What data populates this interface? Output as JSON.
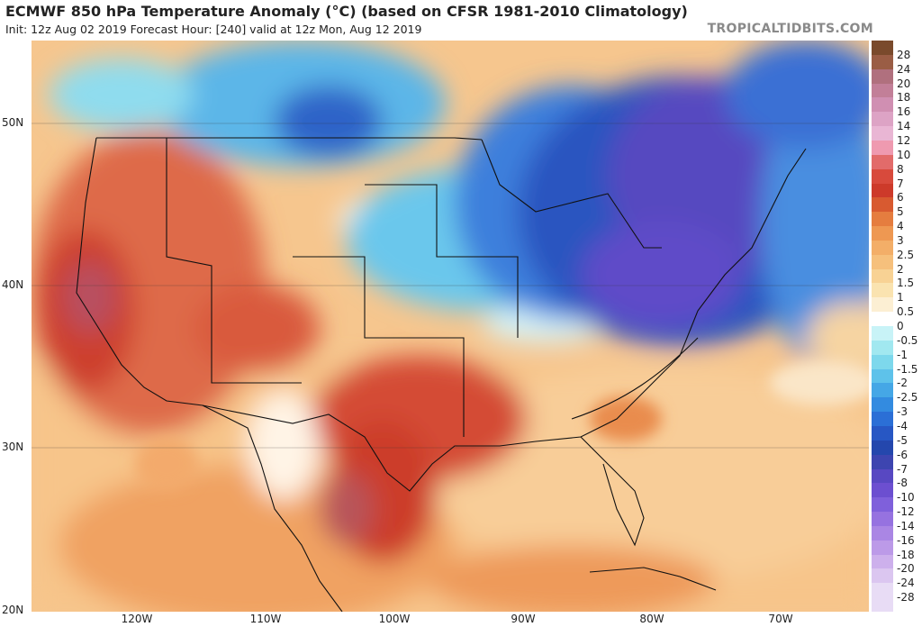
{
  "header": {
    "title": "ECMWF 850 hPa Temperature Anomaly (°C) (based on CFSR 1981-2010 Climatology)",
    "subtitle": "Init: 12z Aug 02 2019   Forecast Hour: [240]   valid at 12z Mon, Aug 12 2019",
    "brand": "TROPICALTIDBITS.COM"
  },
  "map": {
    "lat_labels": [
      "50N",
      "40N",
      "30N",
      "20N"
    ],
    "lon_labels": [
      "120W",
      "110W",
      "100W",
      "90W",
      "80W",
      "70W"
    ],
    "lon_range": [
      -128,
      -63
    ],
    "lat_range": [
      20,
      55
    ]
  },
  "colorbar": {
    "levels": [
      "28",
      "24",
      "20",
      "18",
      "16",
      "14",
      "12",
      "10",
      "8",
      "7",
      "6",
      "5",
      "4",
      "3",
      "2.5",
      "2",
      "1.5",
      "1",
      "0.5",
      "0",
      "-0.5",
      "-1",
      "-1.5",
      "-2",
      "-2.5",
      "-3",
      "-4",
      "-5",
      "-6",
      "-7",
      "-8",
      "-10",
      "-12",
      "-14",
      "-16",
      "-18",
      "-20",
      "-24",
      "-28"
    ],
    "colors": [
      "#7a4a2c",
      "#9a5d45",
      "#b0707e",
      "#c27f98",
      "#d08fb2",
      "#dda3c5",
      "#e9b6d4",
      "#ef9ab0",
      "#e26b6a",
      "#d84a3c",
      "#cd3a2a",
      "#d85a30",
      "#e57d3f",
      "#ee9852",
      "#f3ae68",
      "#f6c07c",
      "#f8d294",
      "#fae3b0",
      "#fcefd3",
      "#ffffff",
      "#c8f3f7",
      "#a1e8f0",
      "#7dd8ec",
      "#5ec2ea",
      "#45a7e6",
      "#338be0",
      "#2b6fd6",
      "#2757c4",
      "#2447ad",
      "#3d45b0",
      "#5848c2",
      "#6c4fd0",
      "#7f60db",
      "#9672e0",
      "#aa86e4",
      "#bc9ae8",
      "#cdb0ec",
      "#dbc6f0",
      "#e8dcf5"
    ]
  }
}
